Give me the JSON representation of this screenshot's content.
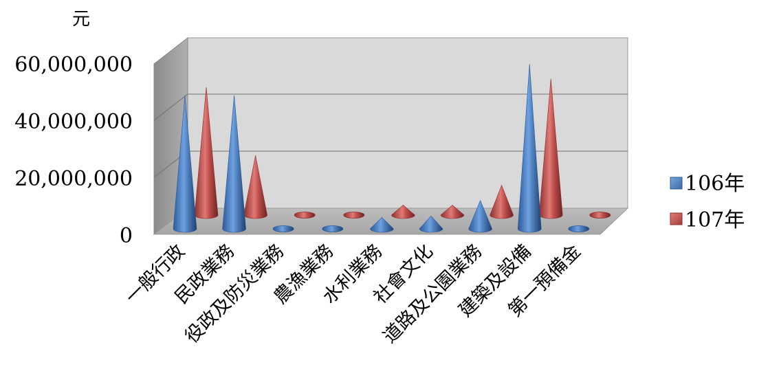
{
  "chart_data": {
    "type": "bar",
    "style": "3d-cone",
    "unit_label": "元",
    "categories": [
      "一般行政",
      "民政業務",
      "役政及防災業務",
      "農漁業務",
      "水利業務",
      "社會文化",
      "道路及公園業務",
      "建築及設備",
      "第一預備金"
    ],
    "series": [
      {
        "name": "106年",
        "color": "#4f81bd",
        "values": [
          47000000,
          47000000,
          0,
          0,
          4000000,
          4500000,
          10000000,
          58000000,
          0
        ]
      },
      {
        "name": "107年",
        "color": "#c0504d",
        "values": [
          45000000,
          21000000,
          0,
          0,
          3500000,
          3500000,
          10500000,
          48000000,
          0
        ]
      }
    ],
    "yticks": [
      "0",
      "20,000,000",
      "40,000,000",
      "60,000,000"
    ],
    "ylim": [
      0,
      60000000
    ],
    "grid": true,
    "legend_position": "right"
  }
}
